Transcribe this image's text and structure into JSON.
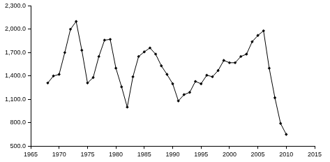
{
  "chart_data": {
    "type": "line",
    "x": [
      1968,
      1969,
      1970,
      1971,
      1972,
      1973,
      1974,
      1975,
      1976,
      1977,
      1978,
      1979,
      1980,
      1981,
      1982,
      1983,
      1984,
      1985,
      1986,
      1987,
      1988,
      1989,
      1990,
      1991,
      1992,
      1993,
      1994,
      1995,
      1996,
      1997,
      1998,
      1999,
      2000,
      2001,
      2002,
      2003,
      2004,
      2005,
      2006,
      2007,
      2008,
      2009,
      2010
    ],
    "values": [
      1310,
      1400,
      1420,
      1700,
      2000,
      2100,
      1730,
      1310,
      1380,
      1650,
      1860,
      1870,
      1500,
      1260,
      1000,
      1390,
      1650,
      1710,
      1760,
      1680,
      1530,
      1420,
      1300,
      1080,
      1160,
      1190,
      1330,
      1300,
      1410,
      1390,
      1470,
      1600,
      1570,
      1570,
      1650,
      1680,
      1840,
      1920,
      1980,
      1500,
      1120,
      790,
      650
    ],
    "color": "#000000",
    "marker": "diamond",
    "xlim": [
      1965,
      2015
    ],
    "xticks": [
      1965,
      1970,
      1975,
      1980,
      1985,
      1990,
      1995,
      2000,
      2005,
      2010,
      2015
    ],
    "ylim": [
      500,
      2300
    ],
    "yticks": [
      {
        "value": 500,
        "label": "500.0"
      },
      {
        "value": 800,
        "label": "800.0"
      },
      {
        "value": 1100,
        "label": "1,100.0"
      },
      {
        "value": 1400,
        "label": "1,400.0"
      },
      {
        "value": 1700,
        "label": "1,700.0"
      },
      {
        "value": 2000,
        "label": "2,000.0"
      },
      {
        "value": 2300,
        "label": "2,300.0"
      }
    ],
    "grid": false
  }
}
